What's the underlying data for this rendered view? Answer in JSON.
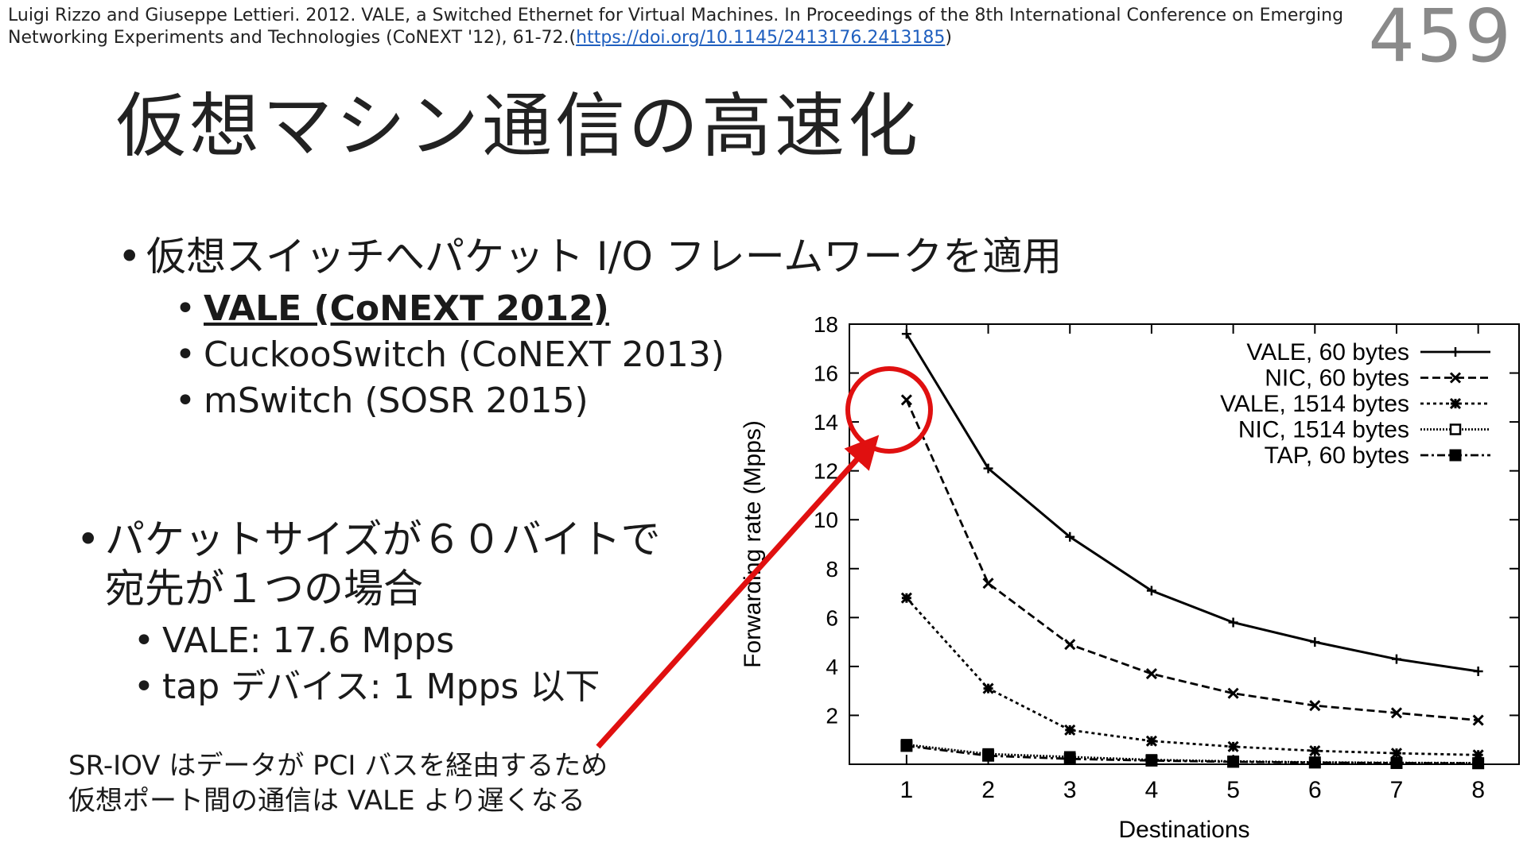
{
  "citation": {
    "text": "Luigi Rizzo and Giuseppe Lettieri. 2012. VALE, a Switched Ethernet for Virtual Machines. In Proceedings of the 8th International Conference on Emerging Networking Experiments and Technologies (CoNEXT '12), 61-72.(",
    "link": "https://doi.org/10.1145/2413176.2413185",
    "tail": ")"
  },
  "page_number": "459",
  "title": "仮想マシン通信の高速化",
  "bullets": {
    "main1": "仮想スイッチへパケット I/O フレームワークを適用",
    "sub1": [
      {
        "label": "VALE (CoNEXT 2012)",
        "bold": true
      },
      {
        "label": "CuckooSwitch (CoNEXT 2013)",
        "bold": false
      },
      {
        "label": "mSwitch (SOSR 2015)",
        "bold": false
      }
    ],
    "main2_line1": "パケットサイズが６０バイトで",
    "main2_line2": "宛先が１つの場合",
    "sub2": [
      {
        "label": "VALE: 17.6 Mpps"
      },
      {
        "label": "tap デバイス: 1 Mpps 以下"
      }
    ]
  },
  "note": {
    "line1": "SR-IOV はデータが PCI バスを経由するため",
    "line2": "仮想ポート間の通信は VALE より遅くなる"
  },
  "annotation_colors": {
    "circle": "#e01010",
    "arrow": "#e01010"
  },
  "chart_data": {
    "type": "line",
    "xlabel": "Destinations",
    "ylabel": "Forwarding rate (Mpps)",
    "xlim": [
      0.3,
      8.5
    ],
    "ylim": [
      0,
      18
    ],
    "x_ticks": [
      1,
      2,
      3,
      4,
      5,
      6,
      7,
      8
    ],
    "y_ticks": [
      2,
      4,
      6,
      8,
      10,
      12,
      14,
      16,
      18
    ],
    "x": [
      1,
      2,
      3,
      4,
      5,
      6,
      7,
      8
    ],
    "legend_position": "top-right",
    "grid": false,
    "series": [
      {
        "name": "VALE, 60 bytes",
        "values": [
          17.6,
          12.1,
          9.3,
          7.1,
          5.8,
          5.0,
          4.3,
          3.8
        ],
        "dash": "",
        "marker": "plus"
      },
      {
        "name": "NIC, 60 bytes",
        "values": [
          14.9,
          7.4,
          4.9,
          3.7,
          2.9,
          2.4,
          2.1,
          1.8
        ],
        "dash": "10,5",
        "marker": "x"
      },
      {
        "name": "VALE, 1514 bytes",
        "values": [
          6.8,
          3.1,
          1.4,
          0.95,
          0.72,
          0.55,
          0.45,
          0.38
        ],
        "dash": "4,4",
        "marker": "star"
      },
      {
        "name": "NIC, 1514 bytes",
        "values": [
          0.8,
          0.42,
          0.3,
          0.18,
          0.12,
          0.08,
          0.06,
          0.05
        ],
        "dash": "2,2",
        "marker": "square-open"
      },
      {
        "name": "TAP, 60 bytes",
        "values": [
          0.75,
          0.35,
          0.22,
          0.15,
          0.1,
          0.07,
          0.05,
          0.04
        ],
        "dash": "10,4,3,4",
        "marker": "square-filled"
      }
    ]
  }
}
